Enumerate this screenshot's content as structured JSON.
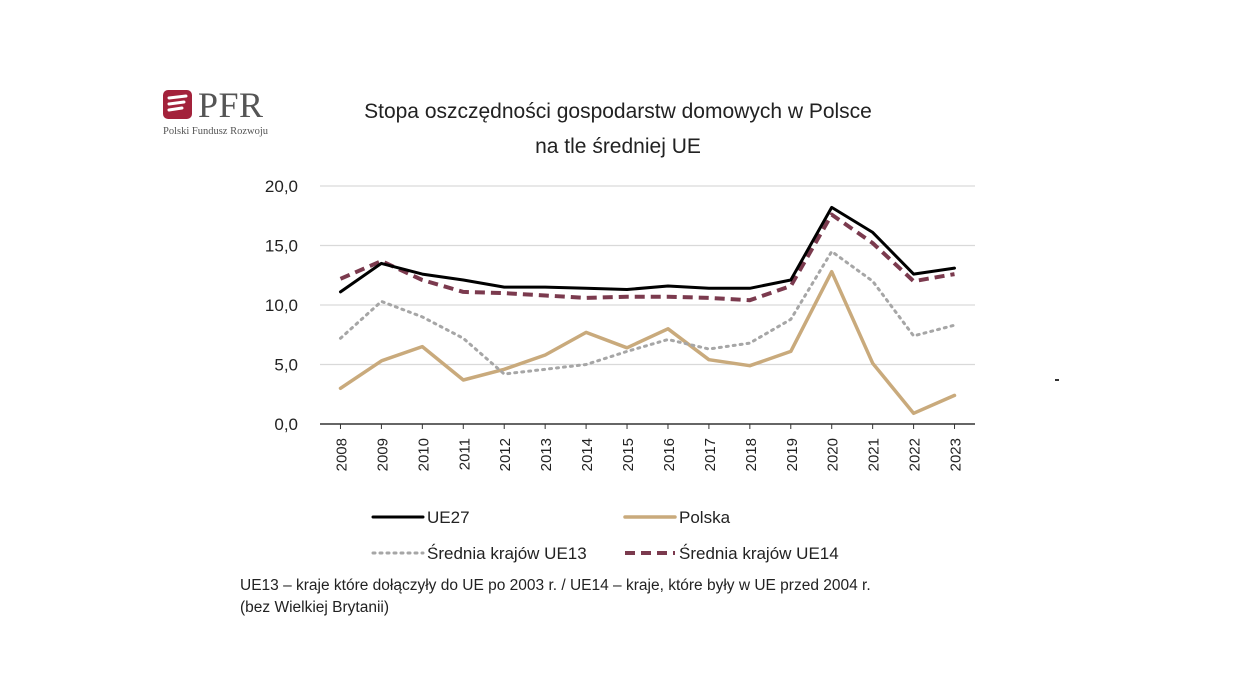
{
  "logo": {
    "brand": "PFR",
    "subtitle": "Polski Fundusz Rozwoju"
  },
  "chart_data": {
    "type": "line",
    "title_lines": [
      "Stopa oszczędności gospodarstw domowych w Polsce",
      "na tle średniej UE"
    ],
    "xlabel": "",
    "ylabel": "",
    "ylim": [
      0,
      20
    ],
    "yticks": [
      "0,0",
      "5,0",
      "10,0",
      "15,0",
      "20,0"
    ],
    "ytick_values": [
      0,
      5,
      10,
      15,
      20
    ],
    "grid": true,
    "legend_position": "bottom",
    "categories": [
      "2008",
      "2009",
      "2010",
      "2011",
      "2012",
      "2013",
      "2014",
      "2015",
      "2016",
      "2017",
      "2018",
      "2019",
      "2020",
      "2021",
      "2022",
      "2023"
    ],
    "series": [
      {
        "name": "UE27",
        "color": "#000000",
        "style": "solid",
        "values": [
          11.1,
          13.5,
          12.6,
          12.1,
          11.5,
          11.5,
          11.4,
          11.3,
          11.6,
          11.4,
          11.4,
          12.1,
          18.2,
          16.1,
          12.6,
          13.1
        ]
      },
      {
        "name": "Polska",
        "color": "#c9aa7c",
        "style": "solid",
        "values": [
          3.0,
          5.3,
          6.5,
          3.7,
          4.6,
          5.8,
          7.7,
          6.4,
          8.0,
          5.4,
          4.9,
          6.1,
          12.8,
          5.1,
          0.9,
          2.4
        ]
      },
      {
        "name": "Średnia krajów UE13",
        "color": "#a6a6a6",
        "style": "dotted",
        "values": [
          7.2,
          10.3,
          9.0,
          7.2,
          4.2,
          4.6,
          5.0,
          6.1,
          7.1,
          6.3,
          6.8,
          8.8,
          14.5,
          12.0,
          7.4,
          8.3
        ]
      },
      {
        "name": "Średnia krajów UE14",
        "color": "#7b3a4e",
        "style": "dashed",
        "values": [
          12.2,
          13.7,
          12.1,
          11.1,
          11.0,
          10.8,
          10.6,
          10.7,
          10.7,
          10.6,
          10.4,
          11.6,
          17.6,
          15.2,
          12.0,
          12.6
        ]
      }
    ]
  },
  "note": {
    "line1": "UE13 – kraje które dołączyły do UE po 2003 r. / UE14 – kraje, które były w UE przed 2004 r.",
    "line2": "(bez Wielkiej Brytanii)"
  }
}
